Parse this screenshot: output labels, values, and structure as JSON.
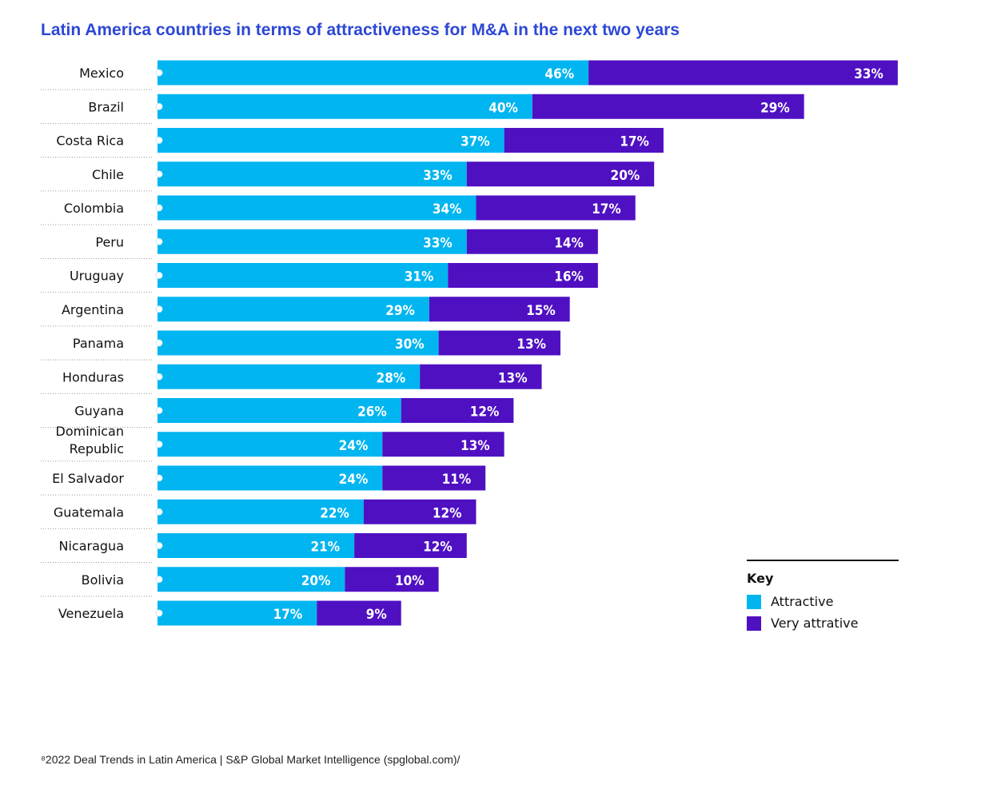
{
  "title": "Latin America countries in terms of attractiveness for M&A in the next two years",
  "footnote": "⁸2022 Deal Trends in Latin America | S&P Global Market Intelligence (spglobal.com)/",
  "colors": {
    "attractive": "#00b5f0",
    "very_attractive": "#4f10c2"
  },
  "key": {
    "title": "Key",
    "items": [
      {
        "label": "Attractive",
        "color": "#00b5f0"
      },
      {
        "label": "Very attrative",
        "color": "#4f10c2"
      }
    ]
  },
  "chart_data": {
    "type": "bar",
    "orientation": "horizontal",
    "stacked": true,
    "title": "Latin America countries in terms of attractiveness for M&A in the next two years",
    "xlabel": "",
    "ylabel": "",
    "categories": [
      "Mexico",
      "Brazil",
      "Costa Rica",
      "Chile",
      "Colombia",
      "Peru",
      "Uruguay",
      "Argentina",
      "Panama",
      "Honduras",
      "Guyana",
      "Dominican Republic",
      "El Salvador",
      "Guatemala",
      "Nicaragua",
      "Bolivia",
      "Venezuela"
    ],
    "series": [
      {
        "name": "Attractive",
        "color": "#00b5f0",
        "values": [
          46,
          40,
          37,
          33,
          34,
          33,
          31,
          29,
          30,
          28,
          26,
          24,
          24,
          22,
          21,
          20,
          17
        ]
      },
      {
        "name": "Very attrative",
        "color": "#4f10c2",
        "values": [
          33,
          29,
          17,
          20,
          17,
          14,
          16,
          15,
          13,
          13,
          12,
          13,
          11,
          12,
          12,
          10,
          9
        ]
      }
    ],
    "value_suffix": "%",
    "xlim": [
      0,
      79
    ],
    "legend": "bottom-right",
    "grid": false
  }
}
